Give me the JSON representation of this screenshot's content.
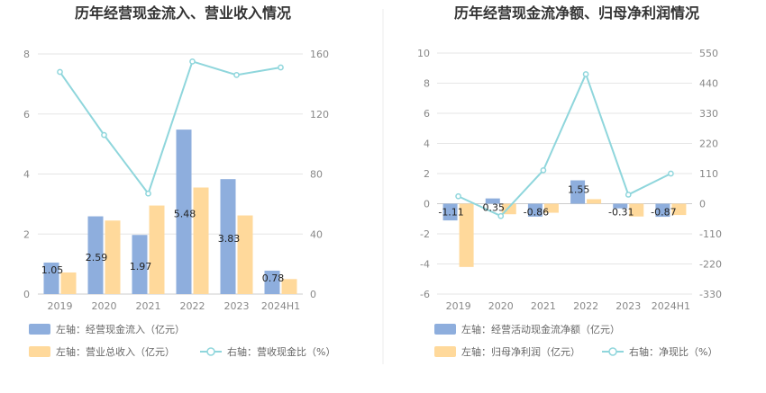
{
  "chart_data": [
    {
      "type": "bar",
      "title": "历年经营现金流入、营业收入情况",
      "categories": [
        "2019",
        "2020",
        "2021",
        "2022",
        "2023",
        "2024H1"
      ],
      "left_axis": {
        "ylim": [
          0,
          8
        ],
        "ticks": [
          "0",
          "2",
          "4",
          "6",
          "8"
        ]
      },
      "right_axis": {
        "ylim": [
          0,
          160
        ],
        "ticks": [
          "0",
          "40",
          "80",
          "120",
          "160"
        ]
      },
      "grid": true,
      "legend_position": "bottom",
      "series": [
        {
          "name": "左轴：经营现金流入（亿元）",
          "type": "bar",
          "axis": "left",
          "color": "#8eaedd",
          "values": [
            1.05,
            2.59,
            1.97,
            5.48,
            3.83,
            0.78
          ],
          "labels": [
            "1.05",
            "2.59",
            "1.97",
            "5.48",
            "3.83",
            "0.78"
          ]
        },
        {
          "name": "左轴：营业总收入（亿元）",
          "type": "bar",
          "axis": "left",
          "color": "#ffd99b",
          "values": [
            0.72,
            2.45,
            2.95,
            3.55,
            2.62,
            0.5
          ]
        },
        {
          "name": "右轴：营收现金比（%）",
          "type": "line",
          "axis": "right",
          "color": "#8fd6dc",
          "values": [
            148,
            106,
            67,
            155,
            146,
            151
          ]
        }
      ]
    },
    {
      "type": "bar",
      "title": "历年经营现金流净额、归母净利润情况",
      "categories": [
        "2019",
        "2020",
        "2021",
        "2022",
        "2023",
        "2024H1"
      ],
      "left_axis": {
        "ylim": [
          -6,
          10
        ],
        "ticks": [
          "-6",
          "-4",
          "-2",
          "0",
          "2",
          "4",
          "6",
          "8",
          "10"
        ]
      },
      "right_axis": {
        "ylim": [
          -330,
          550
        ],
        "ticks": [
          "-330",
          "-220",
          "-110",
          "0",
          "110",
          "220",
          "330",
          "440",
          "550"
        ]
      },
      "grid": true,
      "legend_position": "bottom",
      "series": [
        {
          "name": "左轴：经营活动现金流净额（亿元）",
          "type": "bar",
          "axis": "left",
          "color": "#8eaedd",
          "values": [
            -1.11,
            0.35,
            -0.86,
            1.55,
            -0.31,
            -0.87
          ],
          "labels": [
            "-1.11",
            "0.35",
            "-0.86",
            "1.55",
            "-0.31",
            "-0.87"
          ]
        },
        {
          "name": "左轴：归母净利润（亿元）",
          "type": "bar",
          "axis": "left",
          "color": "#ffd99b",
          "values": [
            -4.2,
            -0.7,
            -0.6,
            0.3,
            -0.85,
            -0.75
          ]
        },
        {
          "name": "右轴：净现比（%）",
          "type": "line",
          "axis": "right",
          "color": "#8fd6dc",
          "values": [
            27,
            -45,
            122,
            473,
            33,
            110
          ]
        }
      ]
    }
  ]
}
